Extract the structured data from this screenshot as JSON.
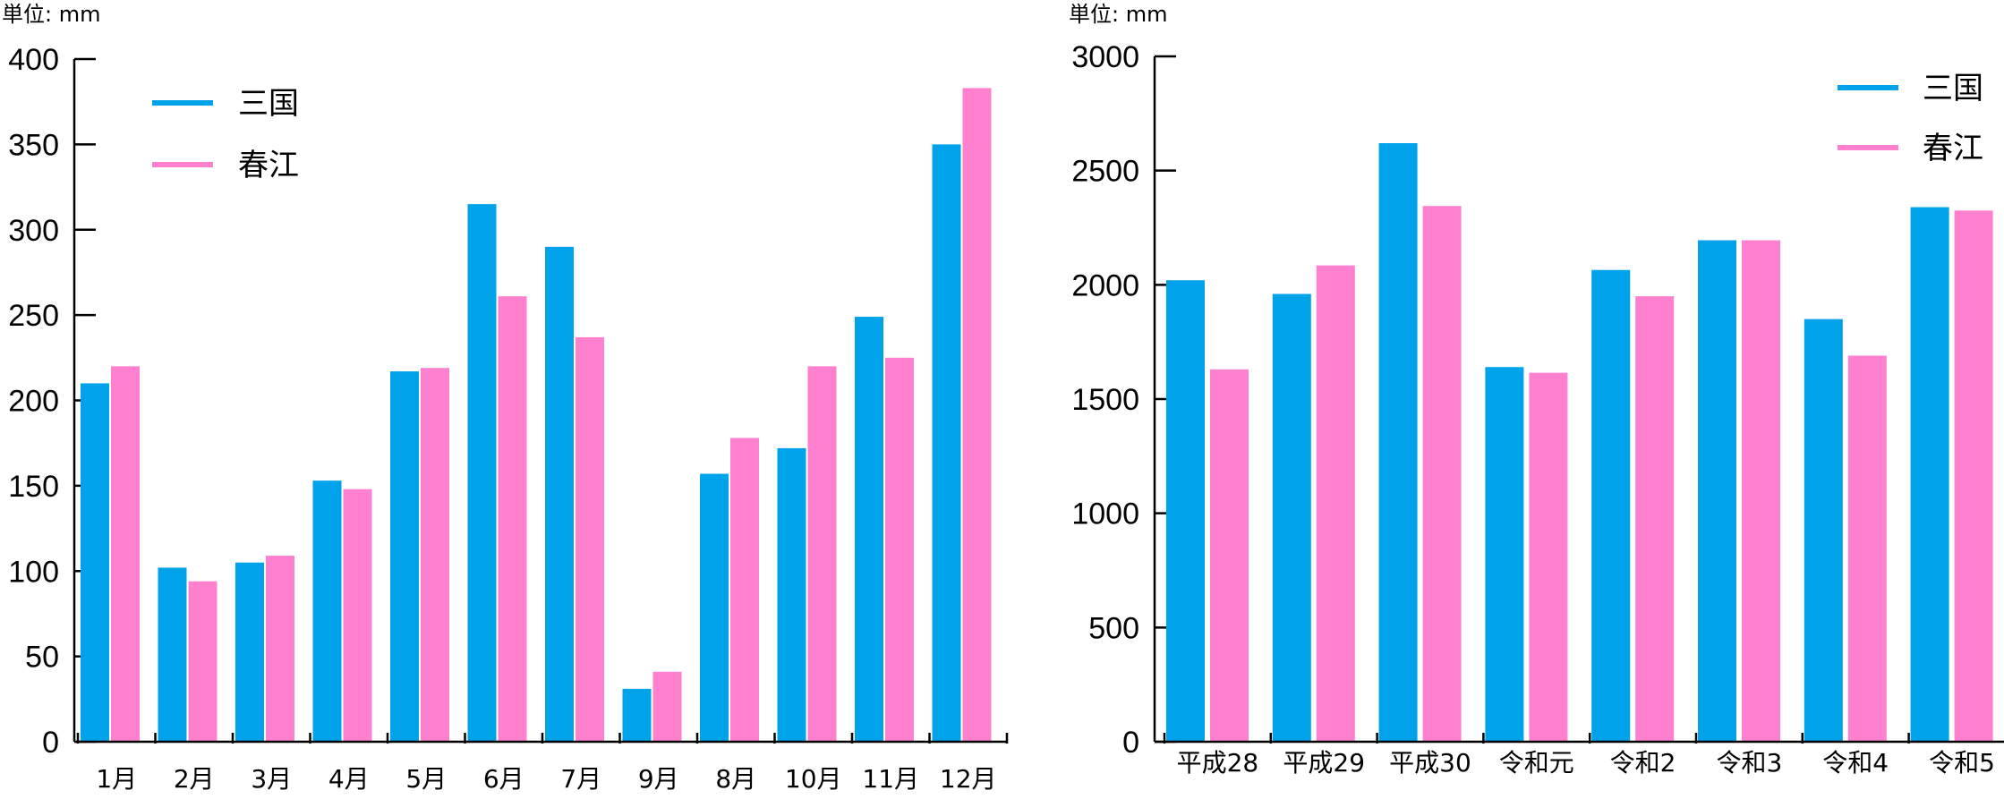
{
  "colors": {
    "mikuni": "#00a2ea",
    "harue": "#ff80cf"
  },
  "chart_data": [
    {
      "type": "bar",
      "unit_label": "単位: mm",
      "ylim": [
        0,
        400
      ],
      "yticks": [
        "0",
        "50",
        "100",
        "150",
        "200",
        "250",
        "300",
        "350",
        "400"
      ],
      "categories": [
        "1月",
        "2月",
        "3月",
        "4月",
        "5月",
        "6月",
        "7月",
        "9月",
        "8月",
        "10月",
        "11月",
        "12月"
      ],
      "legend_position": "top-left",
      "series": [
        {
          "name": "三国",
          "values": [
            210,
            102,
            105,
            153,
            217,
            315,
            290,
            31,
            157,
            172,
            249,
            350
          ]
        },
        {
          "name": "春江",
          "values": [
            220,
            94,
            109,
            148,
            219,
            261,
            237,
            41,
            178,
            220,
            225,
            383
          ]
        }
      ]
    },
    {
      "type": "bar",
      "unit_label": "単位: mm",
      "ylim": [
        0,
        3000
      ],
      "yticks": [
        "0",
        "500",
        "1000",
        "1500",
        "2000",
        "2500",
        "3000"
      ],
      "categories": [
        "平成28",
        "平成29",
        "平成30",
        "令和元",
        "令和2",
        "令和3",
        "令和4",
        "令和5"
      ],
      "legend_position": "top-right",
      "series": [
        {
          "name": "三国",
          "values": [
            2020,
            1960,
            2620,
            1640,
            2065,
            2195,
            1850,
            2340
          ]
        },
        {
          "name": "春江",
          "values": [
            1630,
            2085,
            2345,
            1615,
            1950,
            2195,
            1690,
            2325
          ]
        }
      ]
    }
  ]
}
